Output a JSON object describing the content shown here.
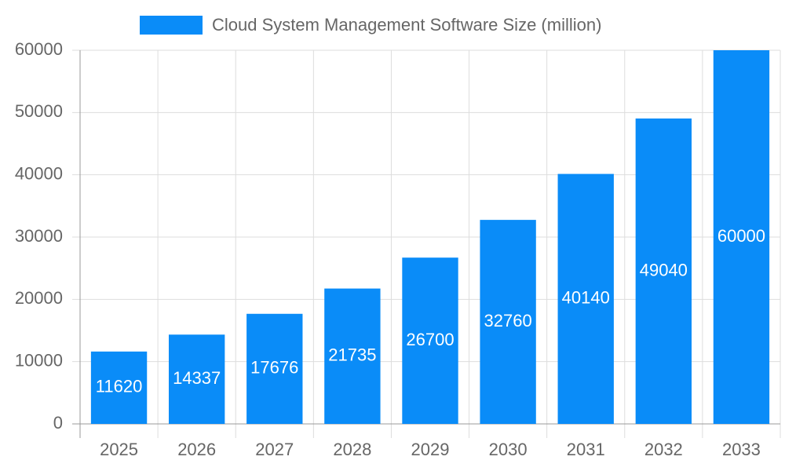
{
  "chart_data": {
    "type": "bar",
    "categories": [
      "2025",
      "2026",
      "2027",
      "2028",
      "2029",
      "2030",
      "2031",
      "2032",
      "2033"
    ],
    "series": [
      {
        "name": "Cloud System Management Software Size (million)",
        "color": "#0a8cf8",
        "values": [
          11620,
          14337,
          17676,
          21735,
          26700,
          32760,
          40140,
          49040,
          60000
        ]
      }
    ],
    "ylim": [
      0,
      60000
    ],
    "yticks": [
      0,
      10000,
      20000,
      30000,
      40000,
      50000,
      60000
    ],
    "grid": true,
    "legend": "top"
  }
}
